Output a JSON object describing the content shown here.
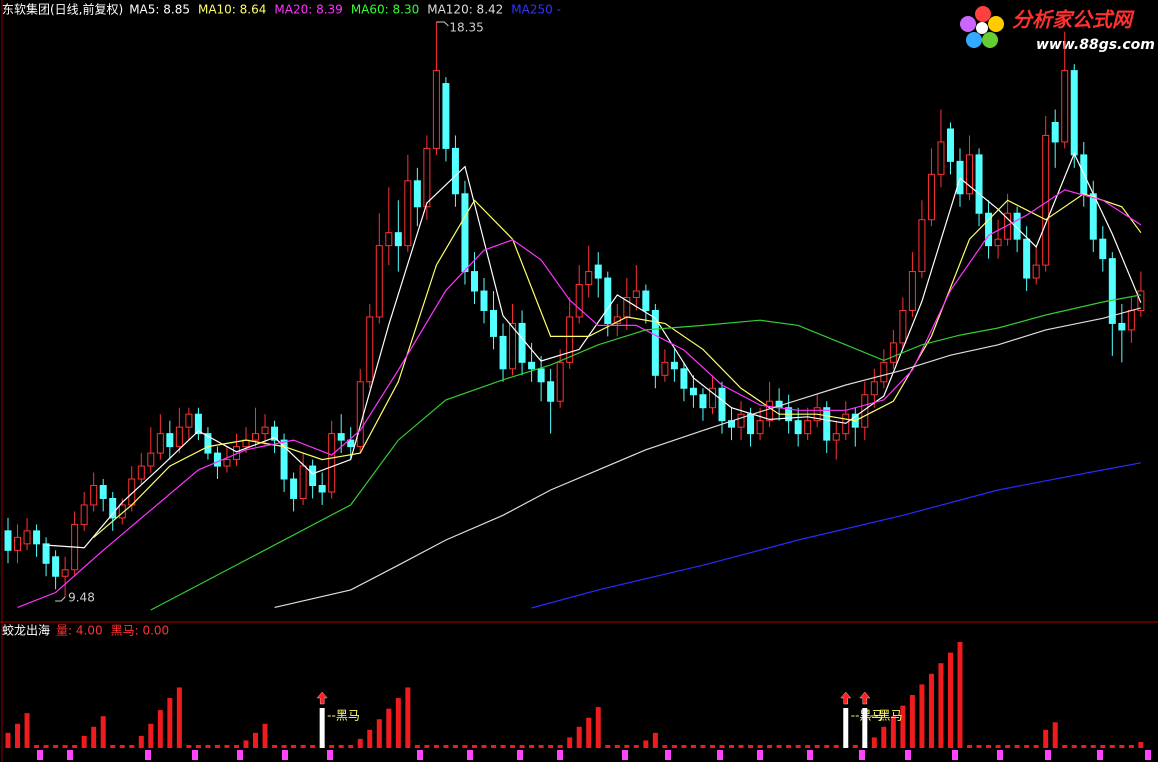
{
  "header": {
    "title": "东软集团(日线,前复权)",
    "items": [
      {
        "text": "MA5: 8.85",
        "color": "#ffffff"
      },
      {
        "text": "MA10: 8.64",
        "color": "#ffff66"
      },
      {
        "text": "MA20: 8.39",
        "color": "#ff33ff"
      },
      {
        "text": "MA60: 8.30",
        "color": "#33ff33"
      },
      {
        "text": "MA120: 8.42",
        "color": "#dddddd"
      },
      {
        "text": "MA250 -",
        "color": "#3333ff"
      }
    ]
  },
  "watermark": {
    "name": "分析家公式网",
    "url": "www.88gs.com"
  },
  "chart_data": [
    {
      "type": "candlestick",
      "up_color": "#ff3232",
      "down_color": "#54ffff",
      "candles": [
        [
          10.5,
          10.7,
          10.0,
          10.2
        ],
        [
          10.2,
          10.6,
          10.0,
          10.4
        ],
        [
          10.3,
          10.7,
          10.2,
          10.5
        ],
        [
          10.5,
          10.6,
          10.1,
          10.3
        ],
        [
          10.3,
          10.4,
          9.8,
          10.0
        ],
        [
          10.1,
          10.2,
          9.6,
          9.8
        ],
        [
          9.8,
          10.1,
          9.48,
          9.9
        ],
        [
          9.9,
          10.8,
          9.8,
          10.6
        ],
        [
          10.6,
          11.1,
          10.5,
          10.9
        ],
        [
          10.9,
          11.4,
          10.8,
          11.2
        ],
        [
          11.2,
          11.3,
          10.8,
          11.0
        ],
        [
          11.0,
          11.1,
          10.5,
          10.7
        ],
        [
          10.7,
          11.0,
          10.6,
          10.9
        ],
        [
          10.9,
          11.5,
          10.8,
          11.3
        ],
        [
          11.3,
          11.7,
          11.2,
          11.5
        ],
        [
          11.5,
          12.1,
          11.4,
          11.7
        ],
        [
          11.7,
          12.3,
          11.6,
          12.0
        ],
        [
          12.0,
          12.2,
          11.6,
          11.8
        ],
        [
          11.8,
          12.4,
          11.7,
          12.1
        ],
        [
          12.1,
          12.4,
          11.9,
          12.3
        ],
        [
          12.3,
          12.4,
          11.9,
          12.0
        ],
        [
          12.0,
          12.1,
          11.6,
          11.7
        ],
        [
          11.7,
          11.8,
          11.3,
          11.5
        ],
        [
          11.5,
          11.8,
          11.4,
          11.6
        ],
        [
          11.6,
          12.0,
          11.5,
          11.8
        ],
        [
          11.8,
          12.1,
          11.7,
          11.9
        ],
        [
          11.9,
          12.4,
          11.8,
          12.0
        ],
        [
          12.0,
          12.3,
          11.8,
          12.1
        ],
        [
          12.1,
          12.2,
          11.7,
          11.9
        ],
        [
          11.9,
          12.0,
          11.1,
          11.3
        ],
        [
          11.3,
          11.4,
          10.8,
          11.0
        ],
        [
          11.0,
          11.7,
          10.9,
          11.5
        ],
        [
          11.5,
          11.6,
          11.0,
          11.2
        ],
        [
          11.2,
          11.4,
          10.9,
          11.1
        ],
        [
          11.1,
          12.2,
          11.0,
          12.0
        ],
        [
          12.0,
          12.3,
          11.7,
          11.9
        ],
        [
          11.9,
          12.1,
          11.6,
          11.8
        ],
        [
          11.8,
          13.0,
          11.7,
          12.8
        ],
        [
          12.8,
          14.0,
          12.7,
          13.8
        ],
        [
          13.8,
          15.4,
          13.7,
          14.9
        ],
        [
          14.9,
          15.8,
          14.6,
          15.1
        ],
        [
          15.1,
          15.6,
          14.5,
          14.9
        ],
        [
          14.9,
          16.3,
          14.8,
          15.9
        ],
        [
          15.9,
          16.1,
          15.2,
          15.5
        ],
        [
          15.5,
          16.6,
          15.3,
          16.4
        ],
        [
          16.4,
          18.35,
          16.3,
          17.6
        ],
        [
          17.4,
          17.5,
          16.2,
          16.4
        ],
        [
          16.4,
          16.6,
          15.5,
          15.7
        ],
        [
          15.7,
          15.9,
          14.3,
          14.5
        ],
        [
          14.5,
          14.8,
          14.0,
          14.2
        ],
        [
          14.2,
          14.4,
          13.7,
          13.9
        ],
        [
          13.9,
          14.2,
          13.3,
          13.5
        ],
        [
          13.5,
          13.7,
          12.8,
          13.0
        ],
        [
          13.0,
          14.0,
          12.9,
          13.7
        ],
        [
          13.7,
          13.9,
          12.9,
          13.1
        ],
        [
          13.1,
          13.4,
          12.8,
          13.0
        ],
        [
          13.0,
          13.2,
          12.5,
          12.8
        ],
        [
          12.8,
          13.0,
          12.0,
          12.5
        ],
        [
          12.5,
          13.3,
          12.4,
          13.1
        ],
        [
          13.1,
          14.1,
          13.0,
          13.8
        ],
        [
          13.8,
          14.6,
          13.7,
          14.3
        ],
        [
          14.3,
          14.9,
          14.1,
          14.5
        ],
        [
          14.6,
          14.8,
          14.1,
          14.4
        ],
        [
          14.4,
          14.5,
          13.5,
          13.7
        ],
        [
          13.7,
          14.0,
          13.5,
          13.8
        ],
        [
          13.8,
          14.4,
          13.6,
          14.1
        ],
        [
          14.1,
          14.6,
          13.9,
          14.2
        ],
        [
          14.2,
          14.3,
          13.7,
          13.9
        ],
        [
          13.9,
          14.0,
          12.7,
          12.9
        ],
        [
          12.9,
          13.3,
          12.8,
          13.1
        ],
        [
          13.1,
          13.3,
          12.8,
          13.0
        ],
        [
          13.0,
          13.1,
          12.5,
          12.7
        ],
        [
          12.7,
          12.9,
          12.4,
          12.6
        ],
        [
          12.6,
          12.7,
          12.2,
          12.4
        ],
        [
          12.4,
          12.9,
          12.3,
          12.7
        ],
        [
          12.7,
          12.8,
          12.0,
          12.2
        ],
        [
          12.2,
          12.4,
          11.9,
          12.1
        ],
        [
          12.1,
          12.5,
          11.9,
          12.3
        ],
        [
          12.3,
          12.4,
          11.8,
          12.0
        ],
        [
          12.0,
          12.4,
          11.9,
          12.2
        ],
        [
          12.2,
          12.8,
          12.1,
          12.5
        ],
        [
          12.5,
          12.7,
          12.2,
          12.4
        ],
        [
          12.4,
          12.6,
          12.0,
          12.2
        ],
        [
          12.2,
          12.4,
          11.8,
          12.0
        ],
        [
          12.0,
          12.4,
          11.9,
          12.2
        ],
        [
          12.2,
          12.6,
          12.1,
          12.4
        ],
        [
          12.4,
          12.5,
          11.7,
          11.9
        ],
        [
          11.9,
          12.2,
          11.6,
          12.0
        ],
        [
          12.0,
          12.5,
          11.9,
          12.3
        ],
        [
          12.3,
          12.4,
          11.8,
          12.1
        ],
        [
          12.1,
          12.8,
          11.9,
          12.6
        ],
        [
          12.6,
          13.0,
          12.4,
          12.8
        ],
        [
          12.8,
          13.3,
          12.7,
          13.1
        ],
        [
          13.1,
          13.6,
          13.0,
          13.4
        ],
        [
          13.4,
          14.1,
          13.3,
          13.9
        ],
        [
          13.9,
          14.8,
          13.8,
          14.5
        ],
        [
          14.5,
          15.6,
          14.4,
          15.3
        ],
        [
          15.3,
          16.4,
          15.2,
          16.0
        ],
        [
          16.0,
          17.0,
          15.8,
          16.5
        ],
        [
          16.7,
          16.8,
          16.0,
          16.2
        ],
        [
          16.2,
          16.4,
          15.5,
          15.7
        ],
        [
          15.7,
          16.6,
          15.6,
          16.3
        ],
        [
          16.3,
          16.4,
          15.2,
          15.4
        ],
        [
          15.4,
          15.6,
          14.7,
          14.9
        ],
        [
          14.9,
          15.3,
          14.7,
          15.0
        ],
        [
          15.0,
          15.7,
          14.9,
          15.4
        ],
        [
          15.4,
          15.5,
          14.8,
          15.0
        ],
        [
          15.0,
          15.2,
          14.2,
          14.4
        ],
        [
          14.4,
          14.9,
          14.3,
          14.6
        ],
        [
          14.6,
          16.9,
          14.5,
          16.6
        ],
        [
          16.8,
          17.0,
          16.1,
          16.5
        ],
        [
          16.5,
          18.2,
          16.4,
          17.6
        ],
        [
          17.6,
          17.7,
          16.1,
          16.3
        ],
        [
          16.3,
          16.5,
          15.5,
          15.7
        ],
        [
          15.7,
          15.9,
          14.8,
          15.0
        ],
        [
          15.0,
          15.2,
          14.5,
          14.7
        ],
        [
          14.7,
          14.8,
          13.2,
          13.7
        ],
        [
          13.7,
          14.0,
          13.1,
          13.6
        ],
        [
          13.6,
          14.1,
          13.4,
          13.9
        ],
        [
          13.9,
          14.5,
          13.8,
          14.2
        ]
      ],
      "series": [
        {
          "color": "#ffffff",
          "x": [
            4,
            8,
            12,
            16,
            20,
            24,
            28,
            32,
            36,
            40,
            44,
            48,
            52,
            56,
            60,
            64,
            68,
            72,
            76,
            80,
            84,
            88,
            92,
            96,
            100,
            104,
            108,
            112,
            116,
            119
          ],
          "values": [
            10.28,
            10.24,
            10.94,
            11.48,
            12.04,
            11.72,
            11.94,
            11.38,
            11.6,
            13.68,
            15.56,
            16.12,
            13.82,
            13.12,
            13.3,
            14.14,
            13.78,
            12.86,
            12.4,
            12.22,
            12.26,
            12.16,
            12.58,
            14.04,
            15.94,
            15.46,
            14.88,
            16.32,
            15.08,
            14.02
          ]
        },
        {
          "color": "#ffff66",
          "x": [
            9,
            13,
            17,
            21,
            25,
            29,
            33,
            37,
            41,
            45,
            49,
            53,
            57,
            61,
            65,
            69,
            73,
            77,
            81,
            85,
            89,
            93,
            97,
            101,
            105,
            109,
            113,
            117,
            119
          ],
          "values": [
            10.4,
            10.9,
            11.5,
            11.8,
            11.9,
            11.8,
            11.6,
            11.7,
            12.8,
            14.6,
            15.6,
            15.0,
            13.5,
            13.5,
            13.8,
            13.7,
            13.3,
            12.7,
            12.3,
            12.3,
            12.2,
            12.5,
            13.5,
            15.0,
            15.6,
            15.3,
            15.7,
            15.5,
            15.1
          ]
        },
        {
          "color": "#ff33ff",
          "x": [
            1,
            5,
            10,
            15,
            20,
            25,
            30,
            34,
            37,
            41,
            46,
            50,
            53,
            56,
            59,
            62,
            66,
            71,
            75,
            79,
            83,
            88,
            92,
            95,
            99,
            103,
            107,
            111,
            115,
            119
          ],
          "values": [
            9.32,
            9.55,
            10.2,
            10.82,
            11.44,
            11.75,
            11.9,
            11.67,
            12.05,
            12.98,
            14.21,
            14.83,
            14.99,
            14.68,
            14.06,
            13.67,
            13.67,
            13.29,
            12.75,
            12.44,
            12.36,
            12.36,
            12.52,
            12.98,
            14.21,
            15.06,
            15.37,
            15.76,
            15.6,
            15.22
          ]
        },
        {
          "color": "#33cc33",
          "x": [
            15,
            25,
            36,
            41,
            46,
            52,
            57,
            62,
            67,
            73,
            79,
            83,
            88,
            92,
            96,
            100,
            104,
            109,
            115,
            119
          ],
          "values": [
            9.28,
            10.05,
            10.9,
            11.9,
            12.52,
            12.83,
            13.06,
            13.37,
            13.6,
            13.67,
            13.75,
            13.67,
            13.37,
            13.13,
            13.37,
            13.52,
            13.63,
            13.83,
            14.03,
            14.14
          ]
        },
        {
          "color": "#dddddd",
          "x": [
            28,
            36,
            41,
            46,
            52,
            57,
            62,
            67,
            73,
            78,
            83,
            88,
            94,
            99,
            104,
            109,
            115,
            119
          ],
          "values": [
            9.32,
            9.59,
            9.97,
            10.36,
            10.74,
            11.13,
            11.44,
            11.75,
            12.05,
            12.29,
            12.52,
            12.75,
            12.98,
            13.21,
            13.37,
            13.6,
            13.78,
            13.94
          ]
        },
        {
          "color": "#2a2aff",
          "x": [
            55,
            62,
            73,
            83,
            94,
            104,
            115,
            119
          ],
          "values": [
            9.31,
            9.59,
            9.97,
            10.36,
            10.74,
            11.13,
            11.44,
            11.55
          ]
        }
      ]
    },
    {
      "type": "bar",
      "title": "蛟龙出海",
      "legend": [
        {
          "text": "量: 4.00",
          "color": "#ff3232"
        },
        {
          "text": "黑马: 0.00",
          "color": "#ff3232"
        }
      ],
      "color": "#ee1c1c",
      "values": [
        10,
        16,
        23,
        2,
        2,
        2,
        2,
        2,
        8,
        14,
        21,
        2,
        2,
        2,
        8,
        16,
        25,
        33,
        40,
        2,
        2,
        2,
        2,
        2,
        2,
        5,
        10,
        16,
        2,
        2,
        2,
        2,
        2,
        2,
        2,
        2,
        2,
        6,
        12,
        19,
        26,
        33,
        40,
        2,
        2,
        2,
        2,
        2,
        2,
        2,
        2,
        2,
        2,
        2,
        2,
        2,
        2,
        2,
        2,
        7,
        14,
        20,
        27,
        2,
        2,
        2,
        2,
        5,
        10,
        2,
        2,
        2,
        2,
        2,
        2,
        2,
        2,
        2,
        2,
        2,
        2,
        2,
        2,
        2,
        2,
        2,
        2,
        2,
        2,
        2,
        2,
        7,
        14,
        21,
        28,
        35,
        42,
        49,
        56,
        63,
        70,
        2,
        2,
        2,
        2,
        2,
        2,
        2,
        2,
        12,
        17,
        2,
        2,
        2,
        2,
        2,
        2,
        2,
        2,
        4
      ],
      "signals": [
        33,
        88,
        90
      ],
      "signal_label": "--黑马"
    }
  ]
}
